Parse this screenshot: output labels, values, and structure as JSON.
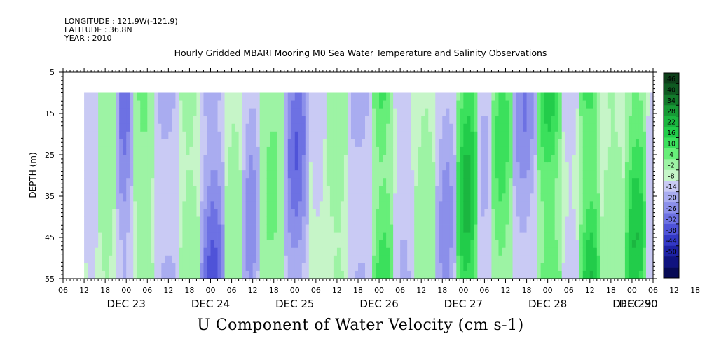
{
  "header": {
    "longitude": "LONGITUDE : 121.9W(-121.9)",
    "latitude": "LATITUDE : 36.8N",
    "year": "YEAR : 2010"
  },
  "chart_data": {
    "type": "heatmap",
    "title": "Hourly Gridded MBARI Mooring M0 Sea Water Temperature and Salinity Observations",
    "xlabel": "U Component of Water Velocity (cm s-1)",
    "ylabel": "DEPTH (m)",
    "y_axis": {
      "range": [
        5,
        55
      ],
      "inverted": true,
      "tick_labels": [
        "5",
        "15",
        "25",
        "35",
        "45",
        "55"
      ]
    },
    "x_axis": {
      "hour_tick_labels": [
        "06",
        "12",
        "18",
        "00",
        "06",
        "12",
        "18",
        "00",
        "06",
        "12",
        "18",
        "00",
        "06",
        "12",
        "18",
        "00",
        "06",
        "12",
        "18",
        "00",
        "06",
        "12",
        "18",
        "00",
        "06",
        "12",
        "18",
        "00",
        "06",
        "12",
        "18",
        "00",
        "06"
      ],
      "date_labels": [
        "DEC 23",
        "DEC 24",
        "DEC 25",
        "DEC 26",
        "DEC 27",
        "DEC 28",
        "DEC 29",
        "DEC 30"
      ],
      "range": [
        "2010-12-23T06:00",
        "2010-12-30T06:00"
      ]
    },
    "data_depth_range": [
      10,
      55
    ],
    "data_time_start": "2010-12-23T12:00",
    "colorbar": {
      "labels": [
        "46",
        "40",
        "34",
        "28",
        "22",
        "16",
        "10",
        "4",
        "-2",
        "-8",
        "-14",
        "-20",
        "-26",
        "-32",
        "-38",
        "-44",
        "-50"
      ],
      "range": [
        -50,
        50
      ],
      "colors": [
        "#0e3f1a",
        "#0f5a22",
        "#137a2c",
        "#179a36",
        "#1bb640",
        "#22cc4a",
        "#3be05c",
        "#67ee79",
        "#9df3a4",
        "#c6f5c8",
        "#c9caf4",
        "#a9acf0",
        "#8b8fea",
        "#6d71e3",
        "#4f53d8",
        "#3338c5",
        "#1e22a5",
        "#10137f",
        "#070a55"
      ],
      "pattern_legend": "Alternating current bands (hours since 2010-12-23 12:00): [start, end, mean value]",
      "bands": [
        [
          0,
          4,
          -6
        ],
        [
          4,
          9,
          6
        ],
        [
          9,
          14,
          -18
        ],
        [
          14,
          20,
          8
        ],
        [
          20,
          27,
          -12
        ],
        [
          27,
          33,
          6
        ],
        [
          33,
          40,
          -22
        ],
        [
          40,
          45,
          5
        ],
        [
          45,
          50,
          -14
        ],
        [
          50,
          57,
          8
        ],
        [
          57,
          64,
          -20
        ],
        [
          64,
          69,
          -4
        ],
        [
          69,
          75,
          6
        ],
        [
          75,
          82,
          -12
        ],
        [
          82,
          88,
          18
        ],
        [
          88,
          94,
          -8
        ],
        [
          94,
          100,
          6
        ],
        [
          100,
          106,
          -14
        ],
        [
          106,
          112,
          22
        ],
        [
          112,
          116,
          -8
        ],
        [
          116,
          122,
          14
        ],
        [
          122,
          129,
          -16
        ],
        [
          129,
          136,
          20
        ],
        [
          136,
          141,
          -6
        ],
        [
          141,
          147,
          22
        ],
        [
          147,
          154,
          6
        ],
        [
          154,
          160,
          20
        ],
        [
          160,
          163,
          -6
        ],
        [
          163,
          168,
          24
        ]
      ]
    }
  }
}
